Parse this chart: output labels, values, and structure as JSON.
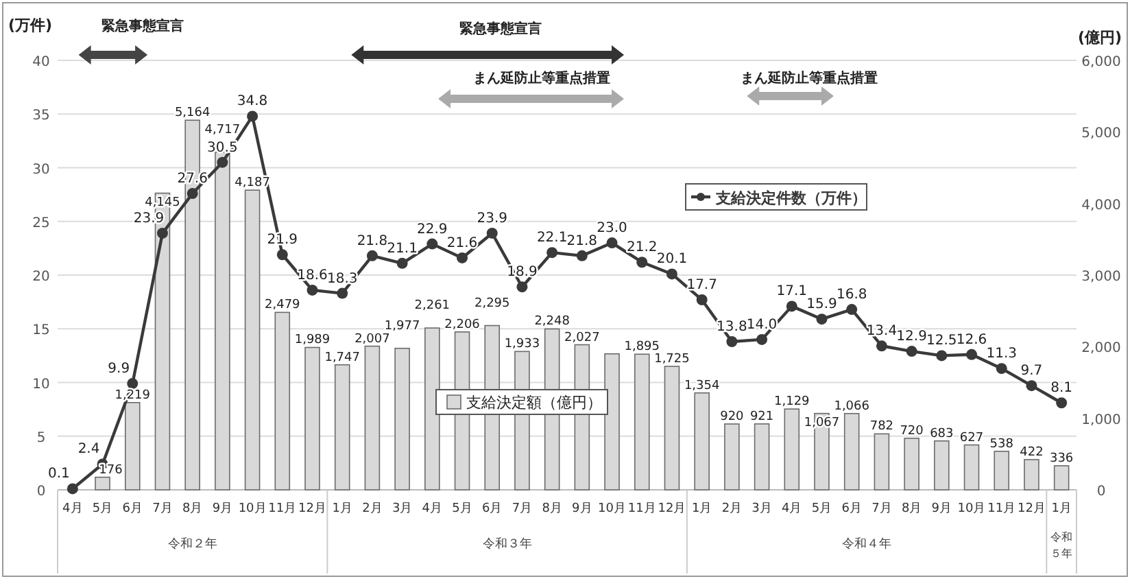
{
  "chart_data": {
    "type": "bar",
    "categories": [
      "4月",
      "5月",
      "6月",
      "7月",
      "8月",
      "9月",
      "10月",
      "11月",
      "12月",
      "1月",
      "2月",
      "3月",
      "4月",
      "5月",
      "6月",
      "7月",
      "8月",
      "9月",
      "10月",
      "11月",
      "12月",
      "1月",
      "2月",
      "3月",
      "4月",
      "5月",
      "6月",
      "7月",
      "8月",
      "9月",
      "10月",
      "11月",
      "12月",
      "1月"
    ],
    "ylabel": "(万件)",
    "y2label": "(億円)",
    "ylim": [
      0,
      40
    ],
    "yticks": [
      0,
      5,
      10,
      15,
      20,
      25,
      30,
      35,
      40
    ],
    "y2lim": [
      0,
      6000
    ],
    "y2ticks": [
      0,
      {
        "value": 1000,
        "label": "1,000"
      },
      {
        "value": 2000,
        "label": "2,000"
      },
      {
        "value": 3000,
        "label": "3,000"
      },
      {
        "value": 4000,
        "label": "4,000"
      },
      {
        "value": 5000,
        "label": "5,000"
      },
      {
        "value": 6000,
        "label": "6,000"
      }
    ],
    "grid": "y",
    "legend": "center",
    "series": [
      {
        "name": "支給決定額（億円）",
        "axis": "y2",
        "color": "#d9d9d9",
        "values": [
          null,
          176,
          1219,
          4145,
          5164,
          4717,
          4187,
          2479,
          1989,
          1747,
          2007,
          1977,
          2261,
          2206,
          2295,
          1933,
          2248,
          2027,
          1900,
          1895,
          1725,
          1354,
          920,
          921,
          1129,
          1067,
          1066,
          782,
          720,
          683,
          627,
          538,
          422,
          336
        ],
        "value_labels": [
          null,
          "176",
          "1,219",
          "4,145",
          "5,164",
          "4,717",
          "4,187",
          "2,479",
          "1,989",
          "1,747",
          "2,007",
          "1,977",
          "2,261",
          "2,206",
          "2,295",
          "1,933",
          "2,248",
          "2,027",
          null,
          "1,895",
          "1,725",
          "1,354",
          "920",
          "921",
          "1,129",
          "1,067",
          "1,066",
          "782",
          "720",
          "683",
          "627",
          "538",
          "422",
          "336"
        ]
      },
      {
        "name": "支給決定件数（万件）",
        "type": "line",
        "color": "#3a3a3a",
        "marker": "circle",
        "line_style": "solid",
        "values": [
          0.1,
          2.4,
          9.9,
          23.9,
          27.6,
          30.5,
          34.8,
          21.9,
          18.6,
          18.3,
          21.8,
          21.1,
          22.9,
          21.6,
          23.9,
          18.9,
          22.1,
          21.8,
          23.0,
          21.2,
          20.1,
          17.7,
          13.8,
          14.0,
          17.1,
          15.9,
          16.8,
          13.4,
          12.9,
          12.5,
          12.6,
          11.3,
          9.7,
          8.1
        ],
        "value_labels": [
          "0.1",
          "2.4",
          "9.9",
          "23.9",
          "27.6",
          "30.5",
          "34.8",
          "21.9",
          "18.6",
          "18.3",
          "21.8",
          "21.1",
          "22.9",
          "21.6",
          "23.9",
          "18.9",
          "22.1",
          "21.8",
          "23.0",
          "21.2",
          "20.1",
          "17.7",
          "13.8",
          "14.0",
          "17.1",
          "15.9",
          "16.8",
          "13.4",
          "12.9",
          "12.5",
          "12.6",
          "11.3",
          "9.7",
          "8.1"
        ]
      }
    ],
    "annotations": [
      "緊急事態宣言",
      "緊急事態宣言",
      "まん延防止等重点措置",
      "まん延防止等重点措置",
      "令和２年",
      "令和３年",
      "令和４年",
      "令和５年"
    ]
  }
}
